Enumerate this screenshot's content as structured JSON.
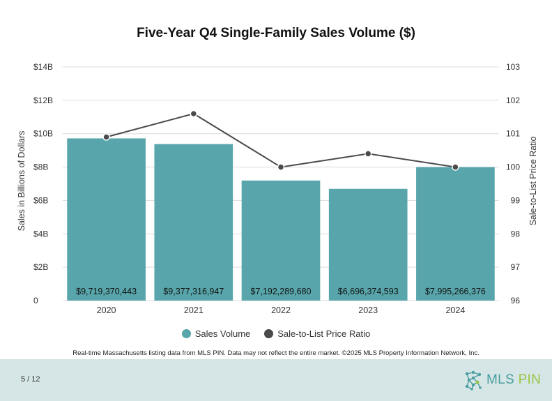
{
  "chart_data": {
    "type": "bar",
    "title": "Five-Year Q4 Single-Family Sales Volume ($)",
    "categories": [
      "2020",
      "2021",
      "2022",
      "2023",
      "2024"
    ],
    "series": [
      {
        "name": "Sales Volume",
        "axis": "left",
        "values": [
          9719370443,
          9377316947,
          7192289680,
          6696374593,
          7995266376
        ],
        "labels": [
          "$9,719,370,443",
          "$9,377,316,947",
          "$7,192,289,680",
          "$6,696,374,593",
          "$7,995,266,376"
        ],
        "color": "#58a6ab"
      },
      {
        "name": "Sale-to-List Price Ratio",
        "axis": "right",
        "type": "line",
        "values": [
          100.9,
          101.6,
          100.0,
          100.4,
          100.0
        ],
        "color": "#4a4a4a"
      }
    ],
    "ylabel": "Sales in Billions of Dollars",
    "y2label": "Sale-to-List Price Ratio",
    "ylim": [
      0,
      14000000000
    ],
    "y2lim": [
      96,
      103
    ],
    "yticks": [
      0,
      2000000000,
      4000000000,
      6000000000,
      8000000000,
      10000000000,
      12000000000,
      14000000000
    ],
    "ytick_labels": [
      "0",
      "$2B",
      "$4B",
      "$6B",
      "$8B",
      "$10B",
      "$12B",
      "$14B"
    ],
    "y2ticks": [
      96,
      97,
      98,
      99,
      100,
      101,
      102,
      103
    ],
    "y2tick_labels": [
      "96",
      "97",
      "98",
      "99",
      "100",
      "101",
      "102",
      "103"
    ],
    "grid": true,
    "legend": "bottom-center"
  },
  "footnote": "Real-time Massachusetts listing data from MLS PIN. Data may not reflect the entire market. ©2025 MLS Property Information Network, Inc.",
  "footer": {
    "page_number": "5 / 12",
    "logo_text_main": "MLS",
    "logo_text_accent": "PIN"
  },
  "colors": {
    "bar": "#58a6ab",
    "line": "#4a4a4a",
    "footer_bg": "#d6e6e6",
    "logo_teal": "#4a9ea0",
    "logo_green": "#9bc444"
  }
}
